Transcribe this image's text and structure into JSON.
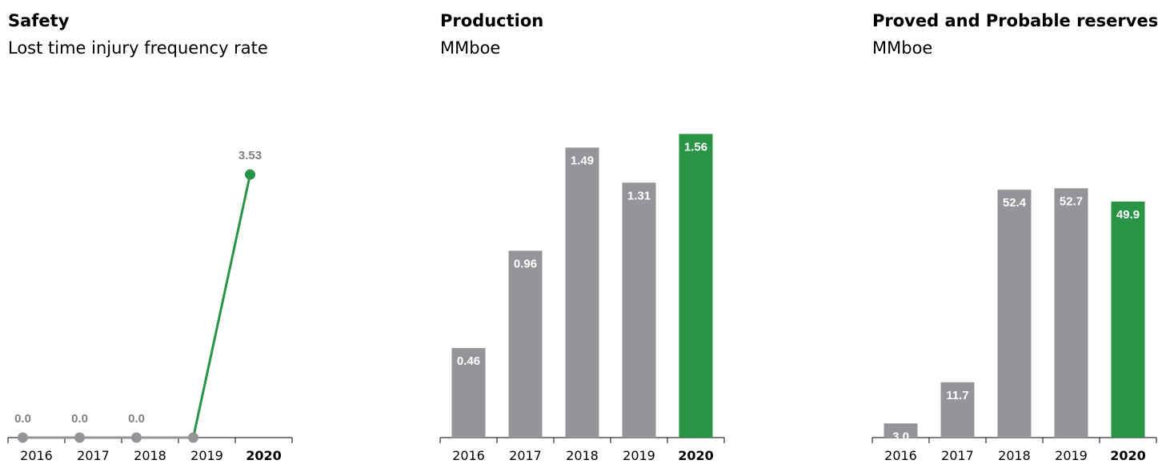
{
  "colors": {
    "history": "#939598",
    "current": "#2a9446",
    "axis": "#000000",
    "label_dark": "#7f7f7f",
    "label_light": "#ffffff"
  },
  "panels": [
    {
      "title": "Safety",
      "subtitle": "Lost time injury frequency rate"
    },
    {
      "title": "Production",
      "subtitle": "MMboe"
    },
    {
      "title": "Proved and Probable reserves",
      "subtitle": "MMboe"
    }
  ],
  "chart_data": [
    {
      "type": "line",
      "title": "Safety",
      "subtitle": "Lost time injury frequency rate",
      "categories": [
        "2016",
        "2017",
        "2018",
        "2019",
        "2020"
      ],
      "values": [
        0.0,
        0.0,
        0.0,
        0.0,
        3.53
      ],
      "data_labels": [
        "0.0",
        "0.0",
        "0.0",
        "",
        "3.53"
      ],
      "highlight_category": "2020",
      "ylim": [
        0,
        4.1
      ],
      "grid": false
    },
    {
      "type": "bar",
      "title": "Production",
      "subtitle": "MMboe",
      "categories": [
        "2016",
        "2017",
        "2018",
        "2019",
        "2020"
      ],
      "values": [
        0.46,
        0.96,
        1.49,
        1.31,
        1.56
      ],
      "data_labels": [
        "0.46",
        "0.96",
        "1.49",
        "1.31",
        "1.56"
      ],
      "highlight_category": "2020",
      "ylim": [
        0,
        1.57
      ],
      "grid": false
    },
    {
      "type": "bar",
      "title": "Proved and Probable reserves",
      "subtitle": "MMboe",
      "categories": [
        "2016",
        "2017",
        "2018",
        "2019",
        "2020"
      ],
      "values": [
        3.0,
        11.7,
        52.4,
        52.7,
        49.9
      ],
      "data_labels": [
        "3.0",
        "11.7",
        "52.4",
        "52.7",
        "49.9"
      ],
      "highlight_category": "2020",
      "ylim": [
        0,
        64.6
      ],
      "grid": false
    }
  ]
}
